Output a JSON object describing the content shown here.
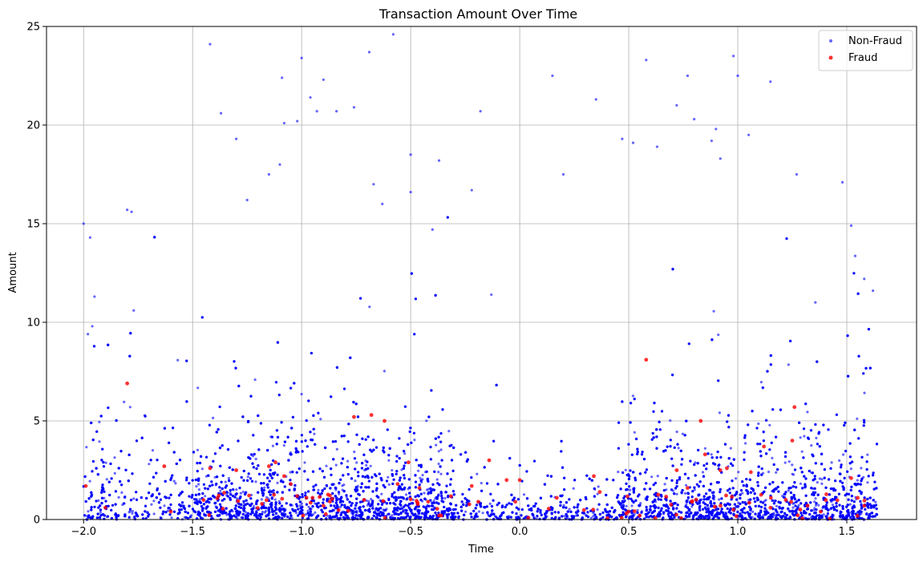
{
  "chart_data": {
    "type": "scatter",
    "title": "Transaction Amount Over Time",
    "xlabel": "Time",
    "ylabel": "Amount",
    "xlim": [
      -2.17,
      1.82
    ],
    "ylim": [
      0,
      25
    ],
    "xticks": [
      -2.0,
      -1.5,
      -1.0,
      -0.5,
      0.0,
      0.5,
      1.0,
      1.5
    ],
    "xtick_labels": [
      "−2.0",
      "−1.5",
      "−1.0",
      "−0.5",
      "0.0",
      "0.5",
      "1.0",
      "1.5"
    ],
    "yticks": [
      0,
      5,
      10,
      15,
      20,
      25
    ],
    "ytick_labels": [
      "0",
      "5",
      "10",
      "15",
      "20",
      "25"
    ],
    "grid": true,
    "legend_position": "top-right",
    "series": [
      {
        "name": "Non-Fraud",
        "color": "#0000ff",
        "opacity": 0.6,
        "x_range": [
          -2.0,
          1.64
        ],
        "note_density": "heavy concentration below 3, sparser up to ~25; lower density between -0.3 and 0.45",
        "x": [
          -2.0,
          -1.97,
          -1.95,
          -1.8,
          -1.78,
          -1.77,
          -1.98,
          -1.96,
          -1.42,
          -1.37,
          -1.3,
          -1.25,
          -1.15,
          -1.1,
          -1.09,
          -1.08,
          -1.02,
          -1.0,
          -0.96,
          -0.93,
          -0.9,
          -0.84,
          -0.76,
          -0.69,
          -0.67,
          -0.63,
          -0.58,
          -0.5,
          -0.5,
          -0.4,
          -0.37,
          -0.22,
          -0.18,
          -0.13,
          0.15,
          0.2,
          0.35,
          0.47,
          0.52,
          0.58,
          0.63,
          0.72,
          0.77,
          0.8,
          0.88,
          0.9,
          0.92,
          0.98,
          1.0,
          1.05,
          1.15,
          1.27,
          1.48,
          1.52,
          1.58,
          1.62
        ],
        "y": [
          15.0,
          14.3,
          11.3,
          15.7,
          15.6,
          10.6,
          9.4,
          9.8,
          24.1,
          20.6,
          19.3,
          16.2,
          17.5,
          18.0,
          22.4,
          20.1,
          20.2,
          23.4,
          21.4,
          20.7,
          22.3,
          20.7,
          20.9,
          23.7,
          17.0,
          16.0,
          24.6,
          18.5,
          16.6,
          14.7,
          18.2,
          16.7,
          20.7,
          11.4,
          22.5,
          17.5,
          21.3,
          19.3,
          19.1,
          23.3,
          18.9,
          21.0,
          22.5,
          20.3,
          19.2,
          19.8,
          18.3,
          23.5,
          22.5,
          19.5,
          22.2,
          17.5,
          17.1,
          14.9,
          12.2,
          11.6
        ]
      },
      {
        "name": "Fraud",
        "color": "#ff0000",
        "opacity": 0.8,
        "x": [
          -1.99,
          -1.9,
          -1.8,
          -1.63,
          -1.6,
          -1.42,
          -1.3,
          -1.15,
          -1.12,
          -1.08,
          -1.05,
          -0.95,
          -0.9,
          -0.76,
          -0.68,
          -0.62,
          -0.56,
          -0.51,
          -0.46,
          -0.42,
          -0.36,
          -0.22,
          -0.19,
          -0.14,
          -0.06,
          -0.02,
          0.0,
          0.17,
          0.34,
          0.55,
          0.58,
          0.72,
          0.77,
          0.83,
          0.85,
          0.92,
          0.95,
          0.98,
          1.06,
          1.12,
          1.15,
          1.22,
          1.25,
          1.26,
          1.32,
          1.38,
          1.52,
          1.55,
          1.58
        ],
        "y": [
          1.7,
          0.6,
          6.9,
          2.7,
          0.4,
          2.6,
          2.5,
          2.7,
          2.9,
          2.2,
          1.8,
          1.1,
          0.7,
          5.2,
          5.3,
          5.0,
          1.8,
          2.9,
          1.6,
          0.9,
          0.2,
          1.7,
          0.9,
          3.0,
          2.0,
          0.9,
          2.0,
          1.1,
          2.2,
          0.2,
          8.1,
          2.5,
          1.6,
          5.0,
          3.3,
          2.5,
          2.6,
          0.5,
          2.4,
          3.7,
          0.6,
          1.0,
          4.0,
          5.7,
          0.7,
          0.4,
          2.1,
          1.1,
          0.7
        ]
      }
    ]
  }
}
